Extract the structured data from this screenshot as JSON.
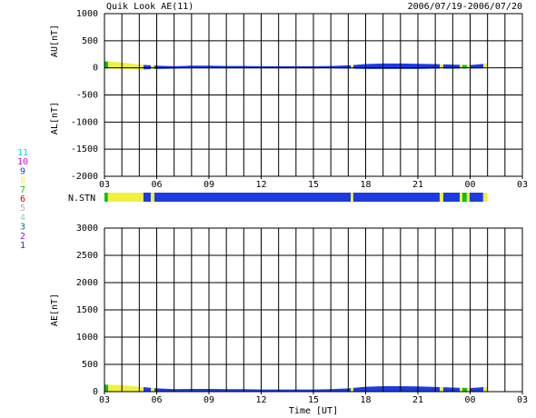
{
  "title": "Quik Look AE(11)",
  "date_range": "2006/07/19-2006/07/20",
  "chart_data": [
    {
      "type": "area",
      "ylabel_upper": "AU[nT]",
      "ylabel_lower": "AL[nT]",
      "xlim": [
        0,
        24
      ],
      "ylim": [
        -2000,
        1000
      ],
      "xticks": [
        {
          "value": 0,
          "label": "03"
        },
        {
          "value": 3,
          "label": "06"
        },
        {
          "value": 6,
          "label": "09"
        },
        {
          "value": 9,
          "label": "12"
        },
        {
          "value": 12,
          "label": "15"
        },
        {
          "value": 15,
          "label": "18"
        },
        {
          "value": 18,
          "label": "21"
        },
        {
          "value": 21,
          "label": "00"
        },
        {
          "value": 24,
          "label": "03"
        }
      ],
      "xgrid": [
        0,
        1,
        2,
        3,
        4,
        5,
        6,
        7,
        8,
        9,
        10,
        11,
        12,
        13,
        14,
        15,
        16,
        17,
        18,
        19,
        20,
        21,
        22,
        23,
        24
      ],
      "yticks": [
        1000,
        500,
        0,
        -500,
        -1000,
        -1500,
        -2000
      ],
      "x": [
        0,
        1,
        2,
        3,
        4,
        5,
        6,
        7,
        8,
        9,
        10,
        11,
        12,
        13,
        14,
        15,
        16,
        17,
        18,
        19,
        20,
        21,
        22
      ],
      "series": [
        {
          "name": "AU",
          "values": [
            120,
            100,
            60,
            40,
            30,
            40,
            40,
            35,
            35,
            30,
            30,
            30,
            30,
            35,
            45,
            70,
            80,
            80,
            75,
            70,
            60,
            50,
            80
          ]
        },
        {
          "name": "AL",
          "values": [
            -10,
            -20,
            -30,
            -20,
            -15,
            -10,
            -10,
            -10,
            -10,
            -10,
            -10,
            -10,
            -10,
            -10,
            -15,
            -20,
            -20,
            -20,
            -20,
            -15,
            -15,
            -15,
            -10
          ]
        }
      ]
    },
    {
      "type": "station",
      "label": "N.STN",
      "xlim": [
        0,
        24
      ],
      "legend": [
        {
          "label": "1",
          "color": "#2020d0"
        },
        {
          "label": "2",
          "color": "#9020c0"
        },
        {
          "label": "3",
          "color": "#008080"
        },
        {
          "label": "4",
          "color": "#90d0d0"
        },
        {
          "label": "5",
          "color": "#b0b0b0"
        },
        {
          "label": "6",
          "color": "#e00000"
        },
        {
          "label": "7",
          "color": "#10c010"
        },
        {
          "label": "8",
          "color": "#f0f040"
        },
        {
          "label": "9",
          "color": "#1c3ce0"
        },
        {
          "label": "10",
          "color": "#e000e0"
        },
        {
          "label": "11",
          "color": "#00e0e0"
        }
      ],
      "segments": [
        {
          "start": 0,
          "end": 0.2,
          "station": 7
        },
        {
          "start": 0.2,
          "end": 2.24,
          "station": 8
        },
        {
          "start": 2.24,
          "end": 2.66,
          "station": 9
        },
        {
          "start": 2.66,
          "end": 2.87,
          "station": 8
        },
        {
          "start": 2.87,
          "end": 14.14,
          "station": 9
        },
        {
          "start": 14.14,
          "end": 14.29,
          "station": 8
        },
        {
          "start": 14.29,
          "end": 19.25,
          "station": 9
        },
        {
          "start": 19.25,
          "end": 19.46,
          "station": 8
        },
        {
          "start": 19.46,
          "end": 20.4,
          "station": 9
        },
        {
          "start": 20.4,
          "end": 20.55,
          "station": 8
        },
        {
          "start": 20.55,
          "end": 20.81,
          "station": 7
        },
        {
          "start": 20.81,
          "end": 20.97,
          "station": 8
        },
        {
          "start": 20.97,
          "end": 21.75,
          "station": 9
        },
        {
          "start": 21.75,
          "end": 22,
          "station": 8
        }
      ]
    },
    {
      "type": "area",
      "ylabel": "AE[nT]",
      "xlabel": "Time [UT]",
      "xlim": [
        0,
        24
      ],
      "ylim": [
        0,
        3000
      ],
      "xticks": [
        {
          "value": 0,
          "label": "03"
        },
        {
          "value": 3,
          "label": "06"
        },
        {
          "value": 6,
          "label": "09"
        },
        {
          "value": 9,
          "label": "12"
        },
        {
          "value": 12,
          "label": "15"
        },
        {
          "value": 15,
          "label": "18"
        },
        {
          "value": 18,
          "label": "21"
        },
        {
          "value": 21,
          "label": "00"
        },
        {
          "value": 24,
          "label": "03"
        }
      ],
      "xgrid": [
        0,
        1,
        2,
        3,
        4,
        5,
        6,
        7,
        8,
        9,
        10,
        11,
        12,
        13,
        14,
        15,
        16,
        17,
        18,
        19,
        20,
        21,
        22,
        23,
        24
      ],
      "yticks": [
        3000,
        2500,
        2000,
        1500,
        1000,
        500,
        0
      ],
      "x": [
        0,
        1,
        2,
        3,
        4,
        5,
        6,
        7,
        8,
        9,
        10,
        11,
        12,
        13,
        14,
        15,
        16,
        17,
        18,
        19,
        20,
        21,
        22
      ],
      "series": [
        {
          "name": "AE",
          "values": [
            130,
            120,
            90,
            60,
            45,
            50,
            50,
            45,
            45,
            40,
            40,
            40,
            40,
            45,
            60,
            90,
            100,
            100,
            95,
            85,
            75,
            65,
            90
          ]
        }
      ]
    }
  ]
}
